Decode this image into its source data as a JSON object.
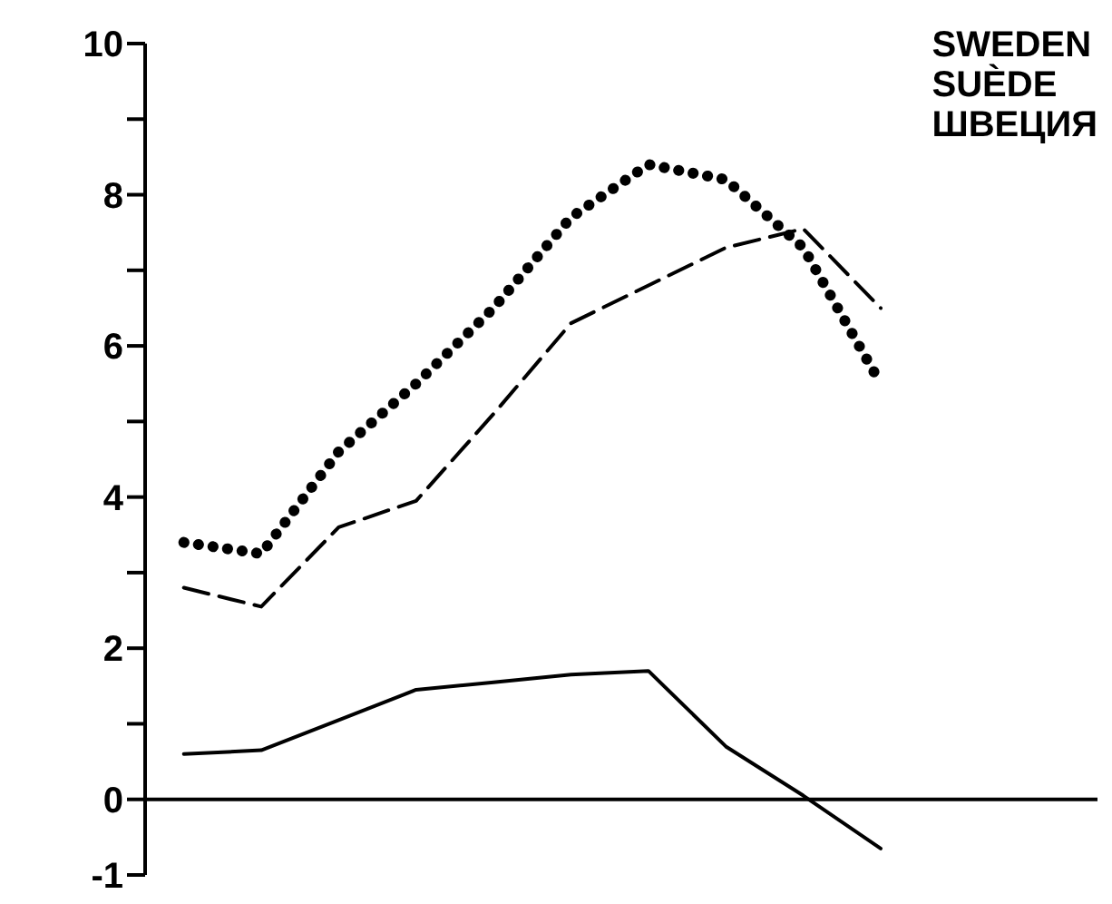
{
  "chart_data": {
    "type": "line",
    "title": "SWEDEN\nSUÈDE\nШВЕЦИЯ",
    "categories": [
      null,
      null,
      null,
      null,
      null,
      null,
      null,
      null,
      null,
      null
    ],
    "series": [
      {
        "color": "#000000",
        "line_style": "dotted",
        "values": [
          3.4,
          3.25,
          4.6,
          5.5,
          6.5,
          7.7,
          8.4,
          8.2,
          7.3,
          5.5
        ]
      },
      {
        "color": "#000000",
        "line_style": "dashed",
        "values": [
          2.8,
          2.55,
          3.6,
          3.95,
          5.1,
          6.3,
          6.8,
          7.3,
          7.55,
          6.5
        ]
      },
      {
        "color": "#000000",
        "line_style": "solid",
        "values": [
          0.6,
          0.65,
          1.05,
          1.45,
          1.55,
          1.65,
          1.7,
          0.7,
          0.05,
          -0.65
        ]
      }
    ],
    "ylim": [
      -1,
      10
    ],
    "yticks": [
      -1,
      0,
      {
        "value": 1,
        "label": null
      },
      2,
      {
        "value": 3,
        "label": null
      },
      4,
      {
        "value": 5,
        "label": null
      },
      6,
      {
        "value": 7,
        "label": null
      },
      8,
      {
        "value": 9,
        "label": null
      },
      10
    ],
    "ref_lines": [
      {
        "axis": "y",
        "value": 0,
        "color": "#000000"
      }
    ],
    "tick_labels": "y",
    "marker": "none"
  }
}
